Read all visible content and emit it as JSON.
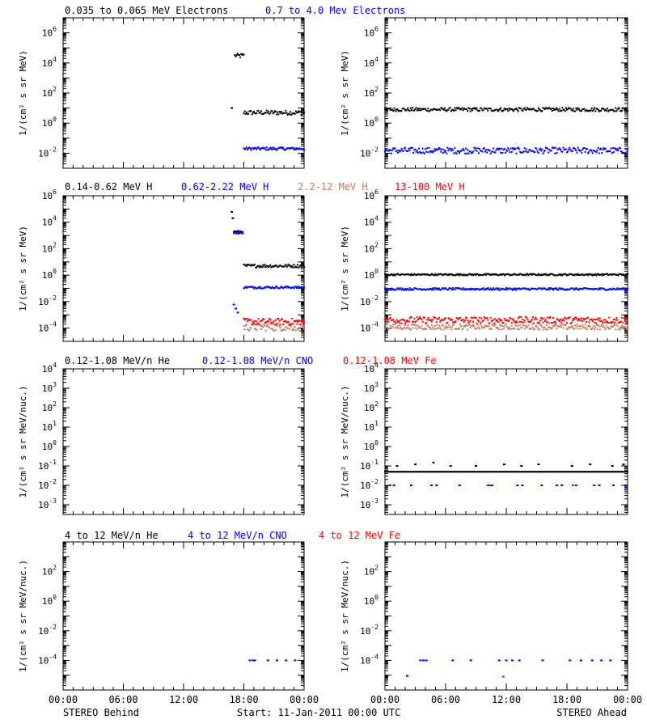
{
  "colors": {
    "black": "#000000",
    "blue": "#0000ff",
    "tan": "#c87a5a",
    "red": "#ff0000"
  },
  "footer": {
    "left": "STEREO Behind",
    "center": "Start: 11-Jan-2011 00:00 UTC",
    "right": "STEREO Ahead"
  },
  "x_tick_labels": [
    "00:00",
    "06:00",
    "12:00",
    "18:00",
    "00:00"
  ],
  "legends": [
    [
      {
        "text": "0.035 to 0.065 MeV Electrons",
        "color": "#000000"
      },
      {
        "text": "0.7 to 4.0 Mev Electrons",
        "color": "#0000ff"
      }
    ],
    [
      {
        "text": "0.14-0.62 MeV H",
        "color": "#000000"
      },
      {
        "text": "0.62-2.22 MeV H",
        "color": "#0000ff"
      },
      {
        "text": "2.2-12 MeV H",
        "color": "#c87a5a"
      },
      {
        "text": "13-100 MeV H",
        "color": "#ff0000"
      }
    ],
    [
      {
        "text": "0.12-1.08 MeV/n He",
        "color": "#000000"
      },
      {
        "text": "0.12-1.08 MeV/n CNO",
        "color": "#0000ff"
      },
      {
        "text": "0.12-1.08 MeV Fe",
        "color": "#ff0000"
      }
    ],
    [
      {
        "text": "4 to 12 MeV/n He",
        "color": "#000000"
      },
      {
        "text": "4 to 12 MeV/n CNO",
        "color": "#0000ff"
      },
      {
        "text": "4 to 12 MeV Fe",
        "color": "#ff0000"
      }
    ]
  ],
  "chart_data": [
    {
      "type": "scatter",
      "row": 0,
      "col": 0,
      "ylabel": "1/(cm² s sr MeV)",
      "yscale": "log",
      "ylim_exp": [
        -3,
        7
      ],
      "ytick_exponents": [
        -2,
        0,
        2,
        4,
        6
      ],
      "xlim_hours": [
        0,
        24
      ],
      "series": [
        {
          "color": "#000000",
          "segments": [
            {
              "x0": 17.1,
              "x1": 18.0,
              "y": 30000,
              "scatter": 0.15
            },
            {
              "x0": 18.0,
              "x1": 24.0,
              "y": 5,
              "scatter": 0.15
            }
          ],
          "points": [
            [
              16.8,
              10
            ]
          ]
        },
        {
          "color": "#0000ff",
          "segments": [
            {
              "x0": 18.0,
              "x1": 24.0,
              "y": 0.02,
              "scatter": 0.1
            }
          ]
        }
      ]
    },
    {
      "type": "scatter",
      "row": 0,
      "col": 1,
      "ylabel": "1/(cm² s sr MeV)",
      "yscale": "log",
      "ylim_exp": [
        -3,
        7
      ],
      "ytick_exponents": [
        -2,
        0,
        2,
        4,
        6
      ],
      "xlim_hours": [
        0,
        24
      ],
      "series": [
        {
          "color": "#000000",
          "segments": [
            {
              "x0": 0,
              "x1": 24,
              "y": 8,
              "scatter": 0.12
            }
          ]
        },
        {
          "color": "#0000ff",
          "segments": [
            {
              "x0": 0,
              "x1": 24,
              "y": 0.015,
              "scatter": 0.2
            }
          ]
        }
      ]
    },
    {
      "type": "scatter",
      "row": 1,
      "col": 0,
      "ylabel": "1/(cm² s sr MeV)",
      "yscale": "log",
      "ylim_exp": [
        -5,
        6
      ],
      "ytick_exponents": [
        -4,
        -2,
        0,
        2,
        4,
        6
      ],
      "xlim_hours": [
        0,
        24
      ],
      "series": [
        {
          "color": "#000000",
          "segments": [
            {
              "x0": 17.0,
              "x1": 17.9,
              "y": 2000,
              "scatter": 0.05
            },
            {
              "x0": 18.0,
              "x1": 24.0,
              "y": 5,
              "scatter": 0.12
            }
          ],
          "points": [
            [
              16.8,
              60000
            ],
            [
              16.9,
              20000
            ]
          ]
        },
        {
          "color": "#0000ff",
          "segments": [
            {
              "x0": 17.0,
              "x1": 17.9,
              "y": 1500,
              "scatter": 0.05
            },
            {
              "x0": 18.0,
              "x1": 24.0,
              "y": 0.12,
              "scatter": 0.08
            }
          ],
          "points": [
            [
              17.0,
              0.006
            ],
            [
              17.2,
              0.003
            ],
            [
              17.4,
              0.0015
            ]
          ]
        },
        {
          "color": "#c87a5a",
          "segments": [
            {
              "x0": 18.0,
              "x1": 24.0,
              "y": 0.00012,
              "scatter": 0.3
            }
          ]
        },
        {
          "color": "#ff0000",
          "segments": [
            {
              "x0": 18.0,
              "x1": 24.0,
              "y": 0.0003,
              "scatter": 0.25
            }
          ]
        }
      ]
    },
    {
      "type": "scatter",
      "row": 1,
      "col": 1,
      "ylabel": "1/(cm² s sr MeV)",
      "yscale": "log",
      "ylim_exp": [
        -5,
        6
      ],
      "ytick_exponents": [
        -4,
        -2,
        0,
        2,
        4,
        6
      ],
      "xlim_hours": [
        0,
        24
      ],
      "series": [
        {
          "color": "#000000",
          "segments": [
            {
              "x0": 0,
              "x1": 24,
              "y": 1.1,
              "scatter": 0.06
            }
          ]
        },
        {
          "color": "#0000ff",
          "segments": [
            {
              "x0": 0,
              "x1": 24,
              "y": 0.09,
              "scatter": 0.08
            }
          ]
        },
        {
          "color": "#c87a5a",
          "segments": [
            {
              "x0": 0,
              "x1": 24,
              "y": 0.00012,
              "scatter": 0.2
            }
          ]
        },
        {
          "color": "#ff0000",
          "segments": [
            {
              "x0": 0,
              "x1": 24,
              "y": 0.0004,
              "scatter": 0.25
            }
          ]
        }
      ]
    },
    {
      "type": "scatter",
      "row": 2,
      "col": 0,
      "ylabel": "1/(cm² s sr MeV/nuc.)",
      "yscale": "log",
      "ylim_exp": [
        -3.5,
        4
      ],
      "ytick_exponents": [
        -3,
        -2,
        -1,
        0,
        1,
        2,
        3,
        4
      ],
      "xlim_hours": [
        0,
        24
      ],
      "series": []
    },
    {
      "type": "scatter",
      "row": 2,
      "col": 1,
      "ylabel": "1/(cm² s sr MeV/nuc.)",
      "yscale": "log",
      "ylim_exp": [
        -3.5,
        4
      ],
      "ytick_exponents": [
        -3,
        -2,
        -1,
        0,
        1,
        2,
        3,
        4
      ],
      "xlim_hours": [
        0,
        24
      ],
      "series": [
        {
          "color": "#000000",
          "segments": [
            {
              "x0": 0,
              "x1": 24,
              "y": 0.05,
              "scatter": 0.0
            }
          ],
          "points": [
            [
              1.2,
              0.1
            ],
            [
              3.0,
              0.12
            ],
            [
              4.8,
              0.15
            ],
            [
              6.5,
              0.1
            ],
            [
              9.0,
              0.1
            ],
            [
              11.8,
              0.12
            ],
            [
              13.5,
              0.1
            ],
            [
              15.2,
              0.12
            ],
            [
              18.5,
              0.1
            ],
            [
              20.3,
              0.12
            ],
            [
              22.5,
              0.1
            ],
            [
              23.6,
              0.12
            ]
          ]
        },
        {
          "color": "#0000ff",
          "segments": [],
          "points": [
            [
              0.5,
              0.01
            ],
            [
              0.9,
              0.01
            ],
            [
              2.6,
              0.01
            ],
            [
              4.6,
              0.01
            ],
            [
              5.1,
              0.01
            ],
            [
              7.4,
              0.01
            ],
            [
              10.2,
              0.01
            ],
            [
              10.6,
              0.01
            ],
            [
              13.1,
              0.01
            ],
            [
              13.6,
              0.01
            ],
            [
              15.5,
              0.01
            ],
            [
              17.0,
              0.01
            ],
            [
              17.5,
              0.01
            ],
            [
              18.9,
              0.01
            ],
            [
              20.7,
              0.01
            ],
            [
              21.2,
              0.01
            ],
            [
              22.6,
              0.01
            ],
            [
              23.8,
              0.01
            ]
          ]
        },
        {
          "color": "#ff0000",
          "segments": [],
          "points": [
            [
              10.4,
              0.01
            ],
            [
              18.6,
              0.01
            ]
          ]
        }
      ]
    },
    {
      "type": "scatter",
      "row": 3,
      "col": 0,
      "ylabel": "1/(cm² s sr MeV/nuc.)",
      "yscale": "log",
      "ylim_exp": [
        -6,
        4
      ],
      "ytick_exponents": [
        -4,
        -2,
        0,
        2
      ],
      "xlim_hours": [
        0,
        24
      ],
      "series": [
        {
          "color": "#0000ff",
          "segments": [],
          "points": [
            [
              18.6,
              0.0001
            ],
            [
              18.9,
              0.0001
            ],
            [
              19.1,
              0.0001
            ],
            [
              20.4,
              0.0001
            ],
            [
              21.3,
              0.0001
            ],
            [
              22.2,
              0.0001
            ],
            [
              23.1,
              0.0001
            ]
          ]
        }
      ]
    },
    {
      "type": "scatter",
      "row": 3,
      "col": 1,
      "ylabel": "1/(cm² s sr MeV/nuc.)",
      "yscale": "log",
      "ylim_exp": [
        -6,
        4
      ],
      "ytick_exponents": [
        -4,
        -2,
        0,
        2
      ],
      "xlim_hours": [
        0,
        24
      ],
      "series": [
        {
          "color": "#0000ff",
          "segments": [],
          "points": [
            [
              3.5,
              0.0001
            ],
            [
              3.8,
              0.0001
            ],
            [
              4.1,
              0.0001
            ],
            [
              6.7,
              0.0001
            ],
            [
              8.5,
              0.0001
            ],
            [
              11.3,
              0.0001
            ],
            [
              12.0,
              0.0001
            ],
            [
              12.6,
              0.0001
            ],
            [
              13.3,
              0.0001
            ],
            [
              15.6,
              0.0001
            ],
            [
              18.3,
              0.0001
            ],
            [
              19.4,
              0.0001
            ],
            [
              20.5,
              0.0001
            ],
            [
              21.4,
              0.0001
            ],
            [
              22.3,
              0.0001
            ],
            [
              2.2,
              9e-06
            ]
          ]
        },
        {
          "color": "#ff0000",
          "segments": [],
          "points": [
            [
              11.7,
              8e-06
            ]
          ]
        }
      ]
    }
  ]
}
